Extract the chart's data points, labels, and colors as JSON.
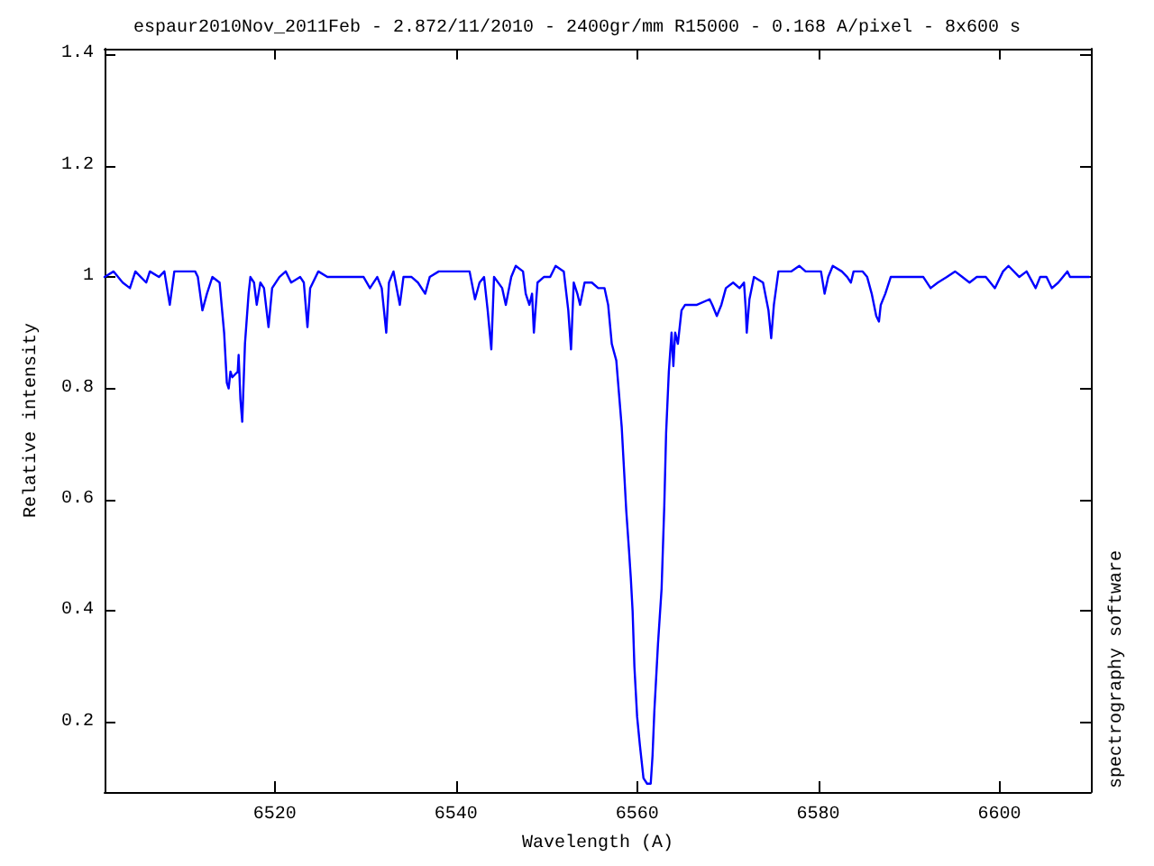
{
  "chart_data": {
    "type": "line",
    "title": "espaur2010Nov_2011Feb - 2.872/11/2010 - 2400gr/mm R15000 - 0.168 A/pixel - 8x600 s",
    "xlabel": "Wavelength (A)",
    "ylabel": "Relative intensity",
    "annotations": [
      "spectrography software"
    ],
    "xlim": [
      6501.2,
      6610.1
    ],
    "xticks": [
      6520,
      6540,
      6560,
      6580,
      6600
    ],
    "ylim": [
      0.075,
      1.41
    ],
    "yticks": [
      0.2,
      0.4,
      0.6,
      0.8,
      1,
      1.2,
      1.4
    ],
    "marker": "none",
    "x": [
      6501.2,
      6502.2,
      6503.2,
      6504.0,
      6504.6,
      6505.2,
      6505.8,
      6506.2,
      6507.2,
      6507.8,
      6508.4,
      6508.9,
      6509.9,
      6511.2,
      6511.5,
      6512.0,
      6512.5,
      6513.1,
      6513.9,
      6514.4,
      6514.7,
      6514.9,
      6515.1,
      6515.3,
      6515.9,
      6516.0,
      6516.2,
      6516.4,
      6516.7,
      6517.1,
      6517.3,
      6517.7,
      6518.0,
      6518.4,
      6518.8,
      6519.3,
      6519.7,
      6520.5,
      6521.2,
      6521.8,
      6522.8,
      6523.2,
      6523.6,
      6523.9,
      6524.8,
      6525.8,
      6527.1,
      6528.5,
      6529.8,
      6530.5,
      6531.3,
      6531.8,
      6532.3,
      6532.6,
      6533.1,
      6533.8,
      6534.2,
      6535.1,
      6535.8,
      6536.6,
      6537.1,
      6538.1,
      6539.1,
      6539.8,
      6540.4,
      6541.5,
      6542.1,
      6542.6,
      6543.1,
      6543.5,
      6543.9,
      6544.2,
      6545.1,
      6545.5,
      6546.1,
      6546.6,
      6547.4,
      6547.7,
      6548.1,
      6548.4,
      6548.6,
      6549.0,
      6549.7,
      6550.4,
      6551.0,
      6551.9,
      6552.4,
      6552.7,
      6553.0,
      6553.4,
      6553.7,
      6554.2,
      6555.0,
      6555.7,
      6556.4,
      6556.8,
      6557.2,
      6557.7,
      6558.0,
      6558.3,
      6558.5,
      6558.8,
      6559.1,
      6559.3,
      6559.5,
      6559.7,
      6560.0,
      6560.3,
      6560.7,
      6561.1,
      6561.5,
      6561.7,
      6561.9,
      6562.3,
      6562.7,
      6563.0,
      6563.2,
      6563.5,
      6563.8,
      6564.0,
      6564.2,
      6564.5,
      6564.9,
      6565.3,
      6566.6,
      6568.0,
      6568.3,
      6568.8,
      6569.3,
      6569.8,
      6570.6,
      6571.3,
      6571.8,
      6572.0,
      6572.1,
      6572.4,
      6572.9,
      6573.9,
      6574.5,
      6574.8,
      6575.1,
      6575.6,
      6577.0,
      6577.9,
      6578.6,
      6579.6,
      6580.3,
      6580.7,
      6581.1,
      6581.6,
      6582.6,
      6583.2,
      6583.6,
      6583.9,
      6584.9,
      6585.4,
      6585.9,
      6586.4,
      6586.7,
      6586.9,
      6587.4,
      6588.0,
      6589.2,
      6590.7,
      6591.6,
      6592.4,
      6593.2,
      6594.2,
      6595.1,
      6595.9,
      6596.7,
      6597.5,
      6598.5,
      6599.5,
      6600.4,
      6601.0,
      6602.2,
      6603.0,
      6604.0,
      6604.5,
      6605.2,
      6605.8,
      6606.5,
      6607.5,
      6607.8,
      6609.1,
      6609.9
    ],
    "series": [
      {
        "color": "#0000ff",
        "values": [
          1.0,
          1.01,
          0.99,
          0.98,
          1.01,
          1.0,
          0.99,
          1.01,
          1.0,
          1.01,
          0.95,
          1.01,
          1.01,
          1.01,
          1.0,
          0.94,
          0.97,
          1.0,
          0.99,
          0.9,
          0.81,
          0.8,
          0.83,
          0.82,
          0.83,
          0.86,
          0.78,
          0.74,
          0.88,
          0.97,
          1.0,
          0.99,
          0.95,
          0.99,
          0.98,
          0.91,
          0.98,
          1.0,
          1.01,
          0.99,
          1.0,
          0.99,
          0.91,
          0.98,
          1.01,
          1.0,
          1.0,
          1.0,
          1.0,
          0.98,
          1.0,
          0.98,
          0.9,
          0.99,
          1.01,
          0.95,
          1.0,
          1.0,
          0.99,
          0.97,
          1.0,
          1.01,
          1.01,
          1.01,
          1.01,
          1.01,
          0.96,
          0.99,
          1.0,
          0.94,
          0.87,
          1.0,
          0.98,
          0.95,
          1.0,
          1.02,
          1.01,
          0.97,
          0.95,
          0.97,
          0.9,
          0.99,
          1.0,
          1.0,
          1.02,
          1.01,
          0.94,
          0.87,
          0.99,
          0.97,
          0.95,
          0.99,
          0.99,
          0.98,
          0.98,
          0.95,
          0.88,
          0.85,
          0.79,
          0.73,
          0.67,
          0.58,
          0.51,
          0.46,
          0.4,
          0.3,
          0.21,
          0.16,
          0.1,
          0.09,
          0.09,
          0.14,
          0.22,
          0.34,
          0.44,
          0.59,
          0.72,
          0.83,
          0.9,
          0.84,
          0.9,
          0.88,
          0.94,
          0.95,
          0.95,
          0.96,
          0.95,
          0.93,
          0.95,
          0.98,
          0.99,
          0.98,
          0.99,
          0.94,
          0.9,
          0.96,
          1.0,
          0.99,
          0.94,
          0.89,
          0.95,
          1.01,
          1.01,
          1.02,
          1.01,
          1.01,
          1.01,
          0.97,
          1.0,
          1.02,
          1.01,
          1.0,
          0.99,
          1.01,
          1.01,
          1.0,
          0.97,
          0.93,
          0.92,
          0.95,
          0.97,
          1.0,
          1.0,
          1.0,
          1.0,
          0.98,
          0.99,
          1.0,
          1.01,
          1.0,
          0.99,
          1.0,
          1.0,
          0.98,
          1.01,
          1.02,
          1.0,
          1.01,
          0.98,
          1.0,
          1.0,
          0.98,
          0.99,
          1.01,
          1.0,
          1.0,
          1.0
        ]
      }
    ]
  }
}
